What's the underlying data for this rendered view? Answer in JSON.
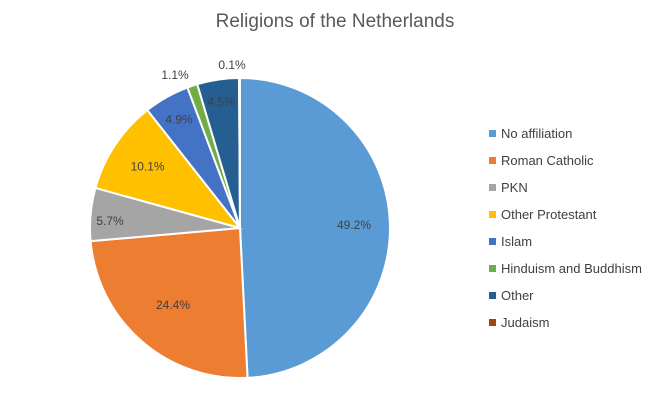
{
  "chart_data": {
    "type": "pie",
    "title": "Religions of the Netherlands",
    "categories": [
      "No affiliation",
      "Roman Catholic",
      "PKN",
      "Other Protestant",
      "Islam",
      "Hinduism and Buddhism",
      "Other",
      "Judaism"
    ],
    "values": [
      49.2,
      24.4,
      5.7,
      10.1,
      4.9,
      1.1,
      4.5,
      0.1
    ],
    "data_labels": [
      "49.2%",
      "24.4%",
      "5.7%",
      "10.1%",
      "4.9%",
      "1.1%",
      "4.5%",
      "0.1%"
    ],
    "colors": [
      "#5B9BD5",
      "#ED7D31",
      "#A5A5A5",
      "#FFC000",
      "#4472C4",
      "#70AD47",
      "#255E91",
      "#9E480E"
    ],
    "legend_position": "right",
    "start_angle_deg": 0,
    "direction": "clockwise"
  }
}
